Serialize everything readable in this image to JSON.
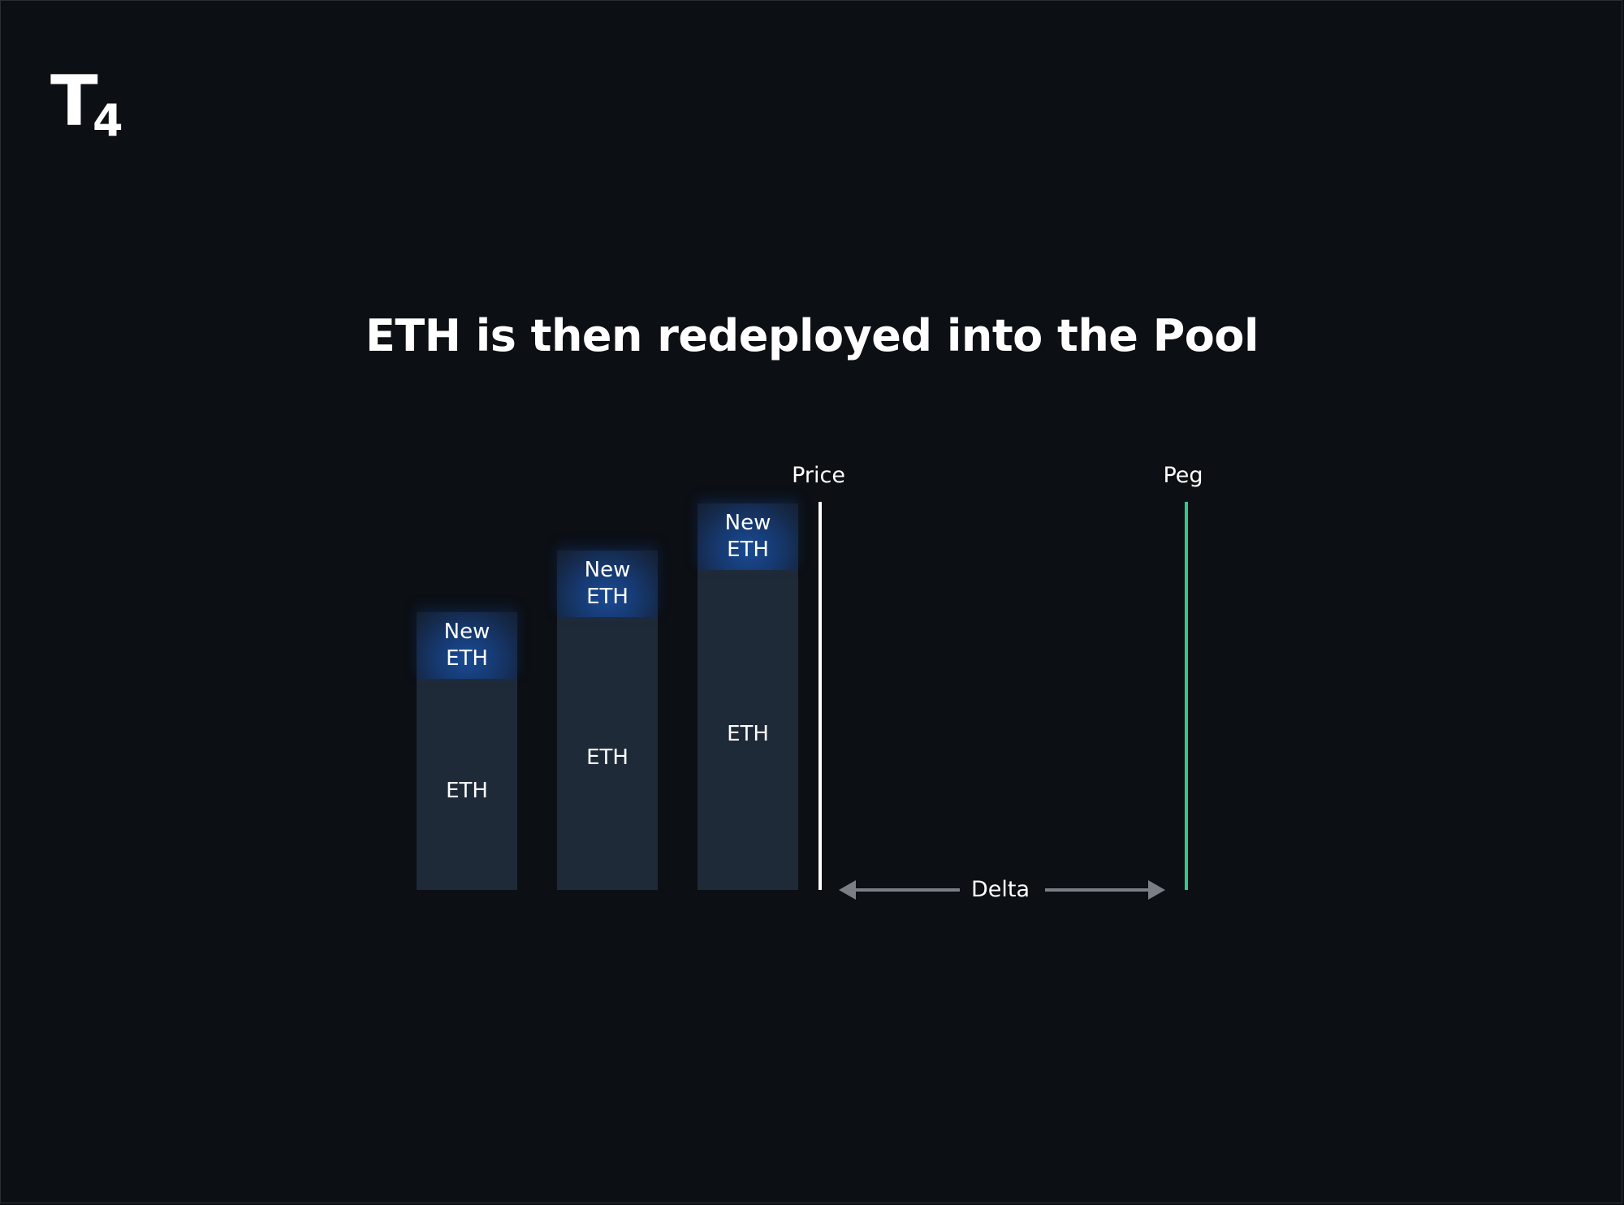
{
  "logo": {
    "letter": "T",
    "number": "4"
  },
  "title": "ETH is then redeployed into the Pool",
  "diagram": {
    "bars": [
      {
        "top_label": "New\nETH",
        "bottom_label": "ETH"
      },
      {
        "top_label": "New\nETH",
        "bottom_label": "ETH"
      },
      {
        "top_label": "New\nETH",
        "bottom_label": "ETH"
      }
    ],
    "price_label": "Price",
    "peg_label": "Peg",
    "delta_label": "Delta",
    "colors": {
      "background": "#0c0f14",
      "bar": "#1f2a38",
      "new_eth_glow": "#1a4a94",
      "price_line": "#ffffff",
      "peg_line": "#2ecc8a",
      "arrow": "#7a7f86"
    }
  }
}
